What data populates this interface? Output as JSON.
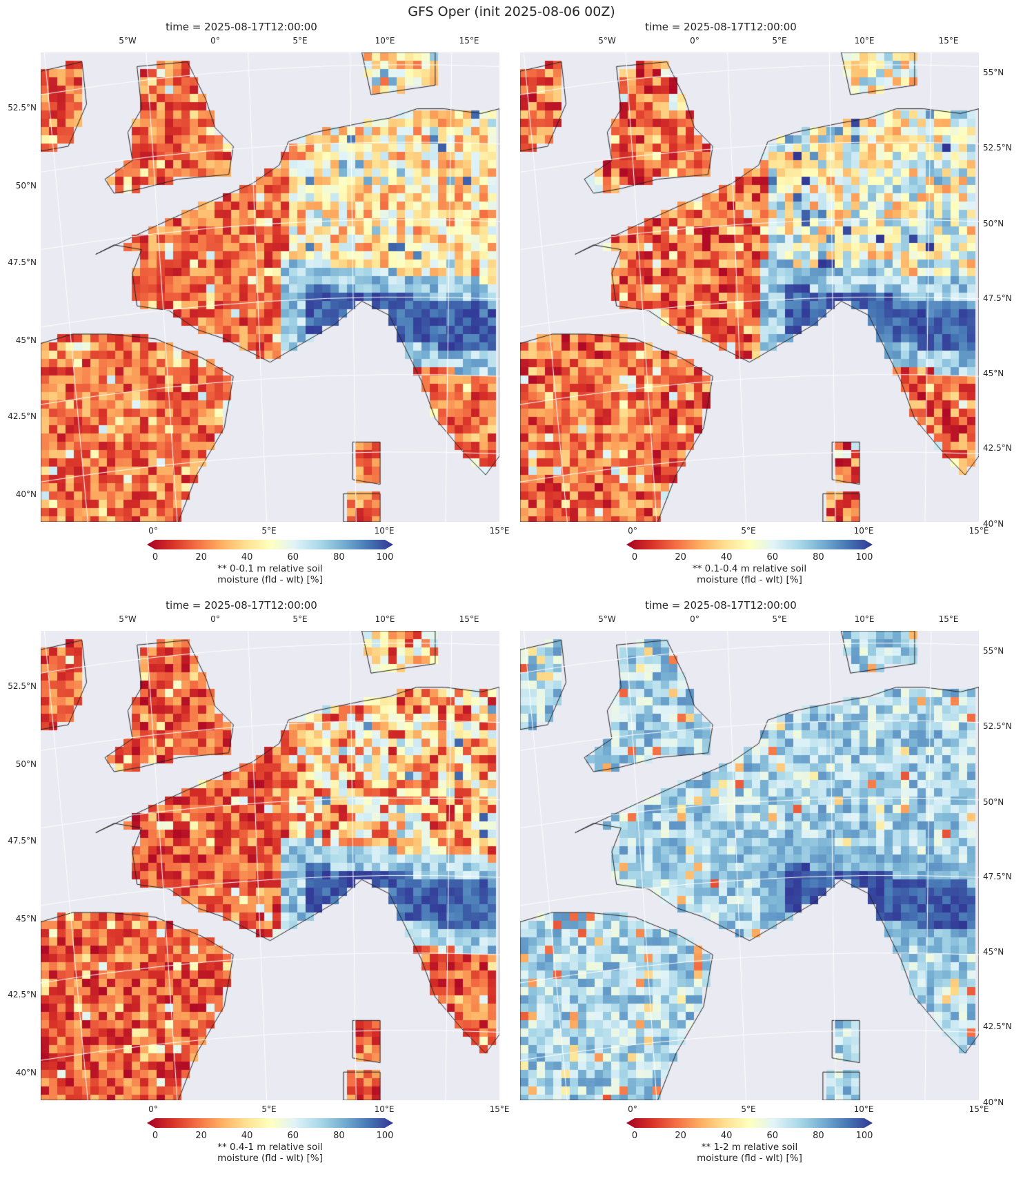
{
  "suptitle": "GFS Oper (init 2025-08-06 00Z)",
  "colormap": {
    "name": "RdYlBu",
    "stops": [
      "#a50026",
      "#d73027",
      "#f46d43",
      "#fdae61",
      "#fee090",
      "#ffffbf",
      "#e0f3f8",
      "#abd9e9",
      "#74add1",
      "#4575b4",
      "#313695"
    ],
    "range": [
      0,
      100
    ],
    "ticks": [
      "0",
      "20",
      "40",
      "60",
      "80",
      "100"
    ]
  },
  "colors": {
    "map_background": "#eaeaf2",
    "gridline": "#ffffff",
    "coastline": "#222222"
  },
  "panels": [
    {
      "title": "time = 2025-08-17T12:00:00",
      "colorbar_label": "** 0-0.1 m relative soil\nmoisture (fld - wlt) [%]",
      "lon_labels_top": [
        "5°W",
        "0°",
        "5°E",
        "10°E",
        "15°E"
      ],
      "lon_labels_bottom": [
        "0°",
        "5°E",
        "10°E",
        "15°E"
      ],
      "lat_labels_left": [
        "52.5°N",
        "50°N",
        "47.5°N",
        "45°N",
        "42.5°N",
        "40°N"
      ],
      "lat_labels_right": [],
      "field_scheme": "dry_surface"
    },
    {
      "title": "time = 2025-08-17T12:00:00",
      "colorbar_label": "** 0.1-0.4 m relative soil\nmoisture (fld - wlt) [%]",
      "lon_labels_top": [
        "5°W",
        "0°",
        "5°E",
        "10°E",
        "15°E"
      ],
      "lon_labels_bottom": [
        "0°",
        "5°E",
        "10°E",
        "15°E"
      ],
      "lat_labels_left": [],
      "lat_labels_right": [
        "55°N",
        "52.5°N",
        "50°N",
        "47.5°N",
        "45°N",
        "42.5°N",
        "40°N"
      ],
      "field_scheme": "dry_shallow"
    },
    {
      "title": "time = 2025-08-17T12:00:00",
      "colorbar_label": "** 0.4-1 m relative soil\nmoisture (fld - wlt) [%]",
      "lon_labels_top": [
        "5°W",
        "0°",
        "5°E",
        "10°E",
        "15°E"
      ],
      "lon_labels_bottom": [
        "0°",
        "5°E",
        "10°E",
        "15°E"
      ],
      "lat_labels_left": [
        "52.5°N",
        "50°N",
        "47.5°N",
        "45°N",
        "42.5°N",
        "40°N"
      ],
      "lat_labels_right": [],
      "field_scheme": "dry_mid"
    },
    {
      "title": "time = 2025-08-17T12:00:00",
      "colorbar_label": "** 1-2 m relative soil\nmoisture (fld - wlt) [%]",
      "lon_labels_top": [
        "5°W",
        "0°",
        "5°E",
        "10°E",
        "15°E"
      ],
      "lon_labels_bottom": [
        "0°",
        "5°E",
        "10°E",
        "15°E"
      ],
      "lat_labels_left": [],
      "lat_labels_right": [
        "55°N",
        "52.5°N",
        "50°N",
        "47.5°N",
        "45°N",
        "42.5°N",
        "40°N"
      ],
      "field_scheme": "wet_deep"
    }
  ]
}
